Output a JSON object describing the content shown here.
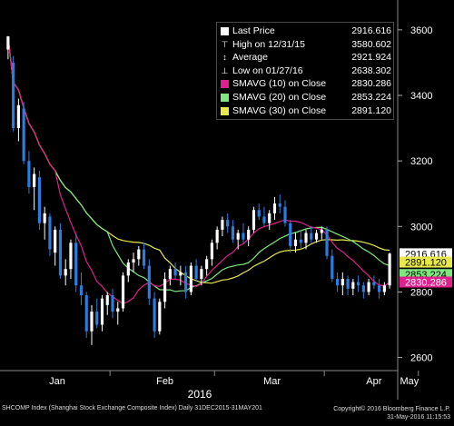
{
  "legend": {
    "items": [
      {
        "label": "Last Price",
        "value": "2916.616",
        "icon": "white-square",
        "color": "#ffffff"
      },
      {
        "label": "High on 12/31/15",
        "value": "3580.602",
        "icon": "high-marker-icon",
        "color": "#ffffff"
      },
      {
        "label": "Average",
        "value": "2921.924",
        "icon": "average-marker-icon",
        "color": "#ffffff"
      },
      {
        "label": "Low on 01/27/16",
        "value": "2638.302",
        "icon": "low-marker-icon",
        "color": "#ffffff"
      },
      {
        "label": "SMAVG (10) on Close",
        "value": "2830.286",
        "icon": "magenta-square",
        "color": "#e0208c"
      },
      {
        "label": "SMAVG (20) on Close",
        "value": "2853.224",
        "icon": "green-square",
        "color": "#7ee87e"
      },
      {
        "label": "SMAVG (30) on Close",
        "value": "2891.120",
        "icon": "yellow-square",
        "color": "#e8e84a"
      }
    ]
  },
  "footer": {
    "left": "SHCOMP Index (Shanghai Stock Exchange Composite Index)  Daily 31DEC2015-31MAY201",
    "right_line1": "Copyright© 2016 Bloomberg Finance L.P.",
    "right_line2": "31-May-2016 11:15:53"
  },
  "chart_data": {
    "type": "candlestick",
    "x_labels": [
      "Jan",
      "Feb",
      "Mar",
      "Apr",
      "May"
    ],
    "year_label": "2016",
    "y_ticks": [
      2600,
      2800,
      3000,
      3200,
      3400,
      3600
    ],
    "ylim": [
      2560,
      3680
    ],
    "price_tags": [
      {
        "value": 2916.616,
        "label": "2916.616",
        "bg": "#ffffff",
        "fg": "#000000"
      },
      {
        "value": 2891.12,
        "label": "2891.120",
        "bg": "#e8e84a",
        "fg": "#000000"
      },
      {
        "value": 2853.224,
        "label": "2853.224",
        "bg": "#7ee87e",
        "fg": "#000000"
      },
      {
        "value": 2830.286,
        "label": "2830.286",
        "bg": "#e0208c",
        "fg": "#ffffff"
      }
    ],
    "colors": {
      "up": "#ffffff",
      "down": "#2a7de1",
      "sma10": "#e0208c",
      "sma20": "#7ee87e",
      "sma30": "#e8e84a"
    },
    "candles": [
      {
        "o": 3540,
        "h": 3581,
        "l": 3510,
        "c": 3580
      },
      {
        "o": 3500,
        "h": 3520,
        "l": 3290,
        "c": 3300
      },
      {
        "o": 3300,
        "h": 3390,
        "l": 3260,
        "c": 3370
      },
      {
        "o": 3360,
        "h": 3380,
        "l": 3190,
        "c": 3200
      },
      {
        "o": 3200,
        "h": 3230,
        "l": 3100,
        "c": 3120
      },
      {
        "o": 3120,
        "h": 3180,
        "l": 3050,
        "c": 3160
      },
      {
        "o": 3150,
        "h": 3170,
        "l": 2990,
        "c": 3010
      },
      {
        "o": 3010,
        "h": 3060,
        "l": 2960,
        "c": 3040
      },
      {
        "o": 3030,
        "h": 3040,
        "l": 2910,
        "c": 2930
      },
      {
        "o": 2920,
        "h": 3000,
        "l": 2880,
        "c": 2990
      },
      {
        "o": 2990,
        "h": 3010,
        "l": 2840,
        "c": 2850
      },
      {
        "o": 2850,
        "h": 2900,
        "l": 2820,
        "c": 2870
      },
      {
        "o": 2870,
        "h": 2960,
        "l": 2840,
        "c": 2950
      },
      {
        "o": 2950,
        "h": 2980,
        "l": 2800,
        "c": 2820
      },
      {
        "o": 2820,
        "h": 2860,
        "l": 2760,
        "c": 2790
      },
      {
        "o": 2790,
        "h": 2800,
        "l": 2660,
        "c": 2680
      },
      {
        "o": 2680,
        "h": 2760,
        "l": 2638,
        "c": 2740
      },
      {
        "o": 2740,
        "h": 2780,
        "l": 2690,
        "c": 2700
      },
      {
        "o": 2700,
        "h": 2790,
        "l": 2680,
        "c": 2780
      },
      {
        "o": 2760,
        "h": 2800,
        "l": 2730,
        "c": 2790
      },
      {
        "o": 2790,
        "h": 2810,
        "l": 2720,
        "c": 2740
      },
      {
        "o": 2740,
        "h": 2770,
        "l": 2700,
        "c": 2750
      },
      {
        "o": 2750,
        "h": 2860,
        "l": 2740,
        "c": 2850
      },
      {
        "o": 2850,
        "h": 2900,
        "l": 2830,
        "c": 2890
      },
      {
        "o": 2890,
        "h": 2920,
        "l": 2860,
        "c": 2900
      },
      {
        "o": 2900,
        "h": 2940,
        "l": 2880,
        "c": 2930
      },
      {
        "o": 2930,
        "h": 2950,
        "l": 2870,
        "c": 2880
      },
      {
        "o": 2880,
        "h": 2900,
        "l": 2760,
        "c": 2780
      },
      {
        "o": 2780,
        "h": 2800,
        "l": 2660,
        "c": 2680
      },
      {
        "o": 2680,
        "h": 2780,
        "l": 2670,
        "c": 2770
      },
      {
        "o": 2770,
        "h": 2860,
        "l": 2750,
        "c": 2840
      },
      {
        "o": 2840,
        "h": 2880,
        "l": 2820,
        "c": 2870
      },
      {
        "o": 2870,
        "h": 2890,
        "l": 2840,
        "c": 2850
      },
      {
        "o": 2850,
        "h": 2880,
        "l": 2820,
        "c": 2860
      },
      {
        "o": 2860,
        "h": 2880,
        "l": 2780,
        "c": 2800
      },
      {
        "o": 2800,
        "h": 2890,
        "l": 2790,
        "c": 2880
      },
      {
        "o": 2880,
        "h": 2900,
        "l": 2830,
        "c": 2840
      },
      {
        "o": 2840,
        "h": 2880,
        "l": 2820,
        "c": 2870
      },
      {
        "o": 2870,
        "h": 2910,
        "l": 2850,
        "c": 2900
      },
      {
        "o": 2900,
        "h": 2960,
        "l": 2880,
        "c": 2950
      },
      {
        "o": 2950,
        "h": 3000,
        "l": 2930,
        "c": 2990
      },
      {
        "o": 2990,
        "h": 3030,
        "l": 2970,
        "c": 3020
      },
      {
        "o": 3020,
        "h": 3040,
        "l": 2980,
        "c": 3000
      },
      {
        "o": 3000,
        "h": 3020,
        "l": 2950,
        "c": 2960
      },
      {
        "o": 2960,
        "h": 2990,
        "l": 2930,
        "c": 2980
      },
      {
        "o": 2980,
        "h": 3010,
        "l": 2950,
        "c": 2960
      },
      {
        "o": 2960,
        "h": 3000,
        "l": 2940,
        "c": 2990
      },
      {
        "o": 2990,
        "h": 3060,
        "l": 2980,
        "c": 3050
      },
      {
        "o": 3050,
        "h": 3070,
        "l": 3020,
        "c": 3030
      },
      {
        "o": 3030,
        "h": 3060,
        "l": 3000,
        "c": 3010
      },
      {
        "o": 3010,
        "h": 3050,
        "l": 2990,
        "c": 3040
      },
      {
        "o": 3040,
        "h": 3090,
        "l": 3020,
        "c": 3070
      },
      {
        "o": 3070,
        "h": 3097,
        "l": 3040,
        "c": 3060
      },
      {
        "o": 3060,
        "h": 3080,
        "l": 3000,
        "c": 3010
      },
      {
        "o": 3010,
        "h": 3020,
        "l": 2920,
        "c": 2940
      },
      {
        "o": 2940,
        "h": 2980,
        "l": 2920,
        "c": 2960
      },
      {
        "o": 2960,
        "h": 2990,
        "l": 2930,
        "c": 2950
      },
      {
        "o": 2950,
        "h": 2990,
        "l": 2930,
        "c": 2980
      },
      {
        "o": 2980,
        "h": 3000,
        "l": 2950,
        "c": 2960
      },
      {
        "o": 2960,
        "h": 2990,
        "l": 2950,
        "c": 2980
      },
      {
        "o": 2980,
        "h": 3000,
        "l": 2960,
        "c": 2990
      },
      {
        "o": 2990,
        "h": 3000,
        "l": 2900,
        "c": 2910
      },
      {
        "o": 2910,
        "h": 2930,
        "l": 2830,
        "c": 2840
      },
      {
        "o": 2840,
        "h": 2860,
        "l": 2800,
        "c": 2820
      },
      {
        "o": 2820,
        "h": 2860,
        "l": 2790,
        "c": 2840
      },
      {
        "o": 2840,
        "h": 2850,
        "l": 2790,
        "c": 2810
      },
      {
        "o": 2810,
        "h": 2840,
        "l": 2790,
        "c": 2830
      },
      {
        "o": 2830,
        "h": 2850,
        "l": 2800,
        "c": 2820
      },
      {
        "o": 2820,
        "h": 2830,
        "l": 2780,
        "c": 2800
      },
      {
        "o": 2800,
        "h": 2840,
        "l": 2790,
        "c": 2830
      },
      {
        "o": 2830,
        "h": 2850,
        "l": 2810,
        "c": 2820
      },
      {
        "o": 2820,
        "h": 2840,
        "l": 2780,
        "c": 2800
      },
      {
        "o": 2800,
        "h": 2830,
        "l": 2790,
        "c": 2820
      },
      {
        "o": 2820,
        "h": 2920,
        "l": 2810,
        "c": 2917
      }
    ],
    "month_index": [
      1,
      20,
      40,
      61,
      79
    ]
  }
}
